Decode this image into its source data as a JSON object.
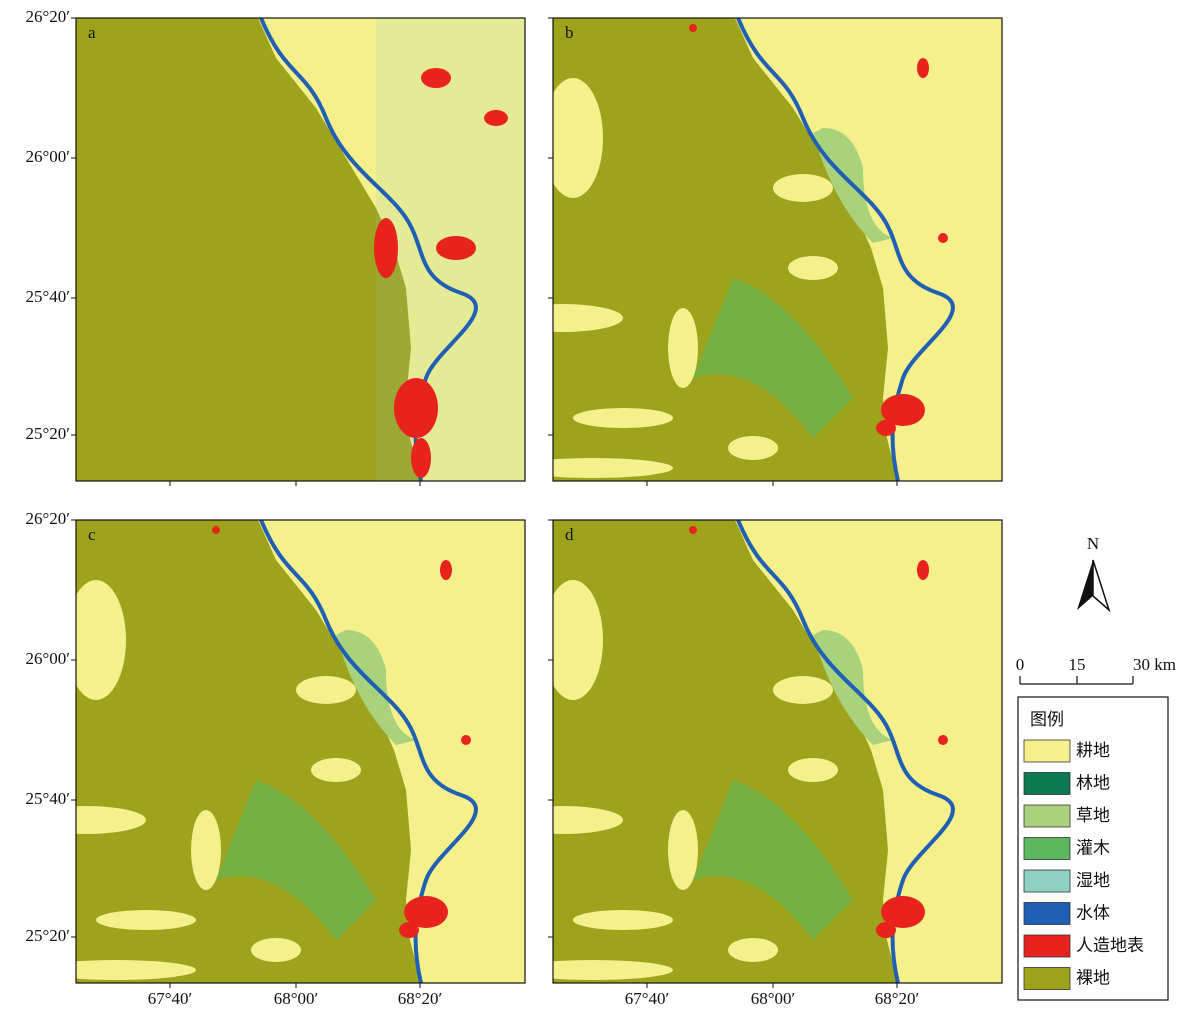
{
  "panels": [
    {
      "label": "a"
    },
    {
      "label": "b"
    },
    {
      "label": "c"
    },
    {
      "label": "d"
    }
  ],
  "lat_labels": [
    "26°20′",
    "26°00′",
    "25°40′",
    "25°20′"
  ],
  "lon_labels": [
    "67°40′",
    "68°00′",
    "68°20′"
  ],
  "north": "N",
  "scale_bar": [
    "0",
    "15",
    "30 km"
  ],
  "legend": {
    "title": "图例",
    "items": [
      {
        "label": "耕地",
        "color": "#f5ef8c"
      },
      {
        "label": "林地",
        "color": "#0c7a52"
      },
      {
        "label": "草地",
        "color": "#a8d27c"
      },
      {
        "label": "灌木",
        "color": "#5cb85c"
      },
      {
        "label": "湿地",
        "color": "#8ed0c4"
      },
      {
        "label": "水体",
        "color": "#1f5fb4"
      },
      {
        "label": "人造地表",
        "color": "#e8231e"
      },
      {
        "label": "裸地",
        "color": "#9ea31c"
      }
    ]
  }
}
